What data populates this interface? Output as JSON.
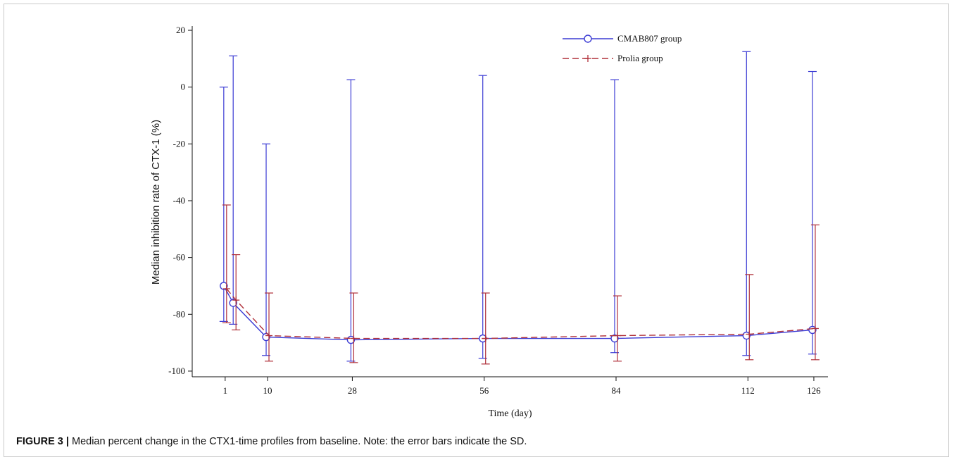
{
  "caption": {
    "label": "FIGURE 3 |",
    "text": "Median percent change in the CTX1-time profiles from baseline. Note: the error bars indicate the SD."
  },
  "chart_data": {
    "type": "line",
    "title": "",
    "xlabel": "Time (day)",
    "ylabel": "Median inhibition rate of CTX-1 (%)",
    "xlim": [
      -6,
      129
    ],
    "ylim": [
      -102,
      21
    ],
    "x_ticks": [
      1,
      10,
      28,
      56,
      84,
      112,
      126
    ],
    "y_ticks": [
      20,
      0,
      -20,
      -40,
      -60,
      -80,
      -100
    ],
    "grid": false,
    "legend_position": "top-right",
    "error_bars": "SD",
    "series": [
      {
        "name": "CMAB807 group",
        "color": "#3b3bd4",
        "line_style": "solid",
        "marker": "circle",
        "x": [
          1,
          3,
          10,
          28,
          56,
          84,
          112,
          126
        ],
        "y": [
          -70,
          -76,
          -88,
          -89,
          -88.5,
          -88.5,
          -87.5,
          -85.5
        ],
        "err_upper": [
          0,
          11,
          -20,
          2.6,
          4.1,
          2.6,
          12.5,
          5.5
        ],
        "err_lower": [
          -82.5,
          -83.5,
          -94.5,
          -96.5,
          -95.5,
          -93.5,
          -94.5,
          -94
        ]
      },
      {
        "name": "Prolia group",
        "color": "#b0303a",
        "line_style": "dashed",
        "marker": "plus",
        "x": [
          1,
          3,
          10,
          28,
          56,
          84,
          112,
          126
        ],
        "y": [
          -71,
          -75,
          -87.5,
          -88.5,
          -88.5,
          -87.5,
          -87,
          -85
        ],
        "err_upper": [
          -41.5,
          -59,
          -72.5,
          -72.5,
          -72.5,
          -73.5,
          -66,
          -48.5
        ],
        "err_lower": [
          -83,
          -85.5,
          -96.5,
          -97,
          -97.5,
          -96.5,
          -96,
          -96
        ]
      }
    ]
  }
}
